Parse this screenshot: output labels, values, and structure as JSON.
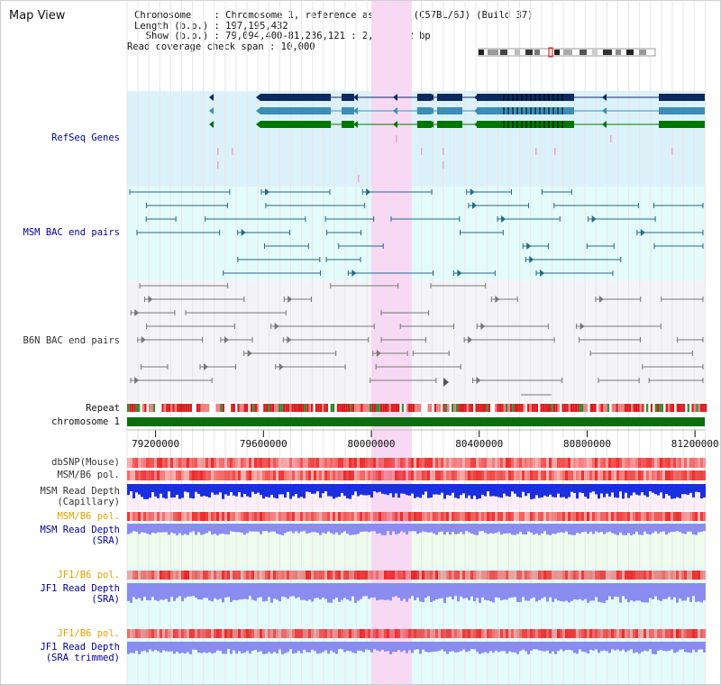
{
  "title": "Map View",
  "info": {
    "chromosome_line": "Chromosome    : Chromosome 1, reference assembly (C57BL/6J) (Build 37)",
    "length_line": "Length (b.p.) : 197,195,432",
    "show_line": "  Show (b.p.) : 79,094,400-81,236,121 : 2,141,722 bp",
    "coverage_line": "Read coverage check span : 10,000"
  },
  "tracks": {
    "refseq": "RefSeq Genes",
    "msm_bac": "MSM BAC end pairs",
    "b6n_bac": "B6N BAC end pairs",
    "repeat": "Repeat",
    "chromosome": "chromosome 1",
    "dbsnp": "dbSNP(Mouse)",
    "msm_b6_pol": "MSM/B6 pol.",
    "msm_depth_cap_1": "MSM Read Depth",
    "msm_depth_cap_2": "(Capillary)",
    "msm_b6_pol_2": "MSM/B6 pol.",
    "msm_depth_sra_1": "MSM Read Depth",
    "msm_depth_sra_2": "(SRA)",
    "jf1_b6_pol": "JF1/B6 pol.",
    "jf1_depth_sra_1": "JF1 Read Depth",
    "jf1_depth_sra_2": "(SRA)",
    "jf1_b6_pol_2": "JF1/B6 pol.",
    "jf1_depth_trim_1": "JF1 Read Depth",
    "jf1_depth_trim_2": "(SRA trimmed)"
  },
  "axis": {
    "ticks": [
      "79200000",
      "79600000",
      "80000000",
      "80400000",
      "80800000",
      "81200000"
    ],
    "tick_values": [
      79200000,
      79600000,
      80000000,
      80400000,
      80800000,
      81200000
    ],
    "range": [
      79094400,
      81236121
    ]
  },
  "highlight": {
    "start": 80000000,
    "end": 80150000
  },
  "colors": {
    "refseq_bg": "#dcf2fb",
    "bac_bg": "#e4fbfb",
    "depth_bg_msm": "#eefcee",
    "depth_bg_jf1": "#e4fbfb",
    "highlight": "#f8d8f4",
    "gene_navy": "#0c2a5e",
    "gene_teal": "#3a8fb8",
    "gene_green": "#007700",
    "msm_pair": "#1f6b8a",
    "b6n_pair": "#777777",
    "chromosome_bar": "#0d6e0d",
    "depth_blue": "#1a2fe0",
    "depth_lavender": "#8a8cf0",
    "pol_red": "#ee3333"
  }
}
